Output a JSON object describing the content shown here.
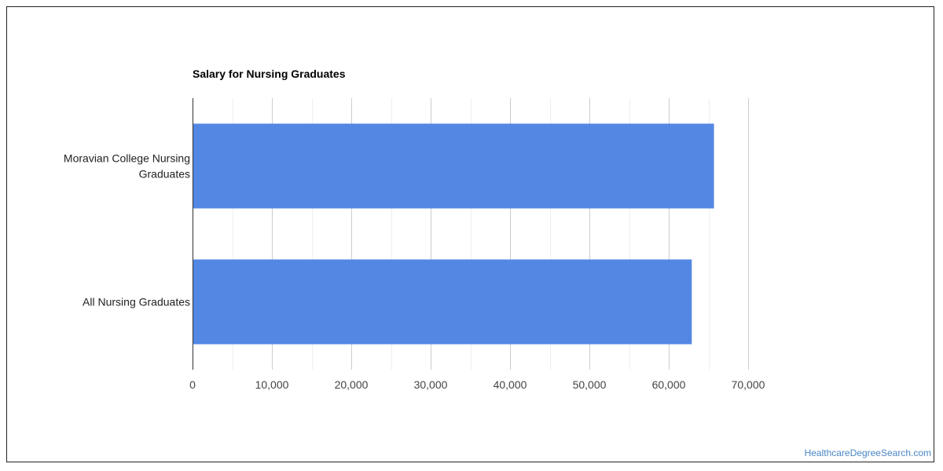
{
  "credit": "HealthcareDegreeSearch.com",
  "colors": {
    "bar": "#5387e3",
    "grid": "#dddddd",
    "axis": "#333333"
  },
  "chart_data": {
    "type": "bar",
    "orientation": "horizontal",
    "title": "Salary for Nursing Graduates",
    "categories": [
      [
        "Moravian College Nursing",
        "Graduates"
      ],
      [
        "All Nursing Graduates"
      ]
    ],
    "values": [
      65700,
      62900
    ],
    "xlim": [
      0,
      70000
    ],
    "xticks": [
      0,
      10000,
      20000,
      30000,
      40000,
      50000,
      60000,
      70000
    ],
    "xtick_labels": [
      "0",
      "10,000",
      "20,000",
      "30,000",
      "40,000",
      "50,000",
      "60,000",
      "70,000"
    ],
    "xlabel": "",
    "ylabel": "",
    "grid": true,
    "legend": "none"
  }
}
